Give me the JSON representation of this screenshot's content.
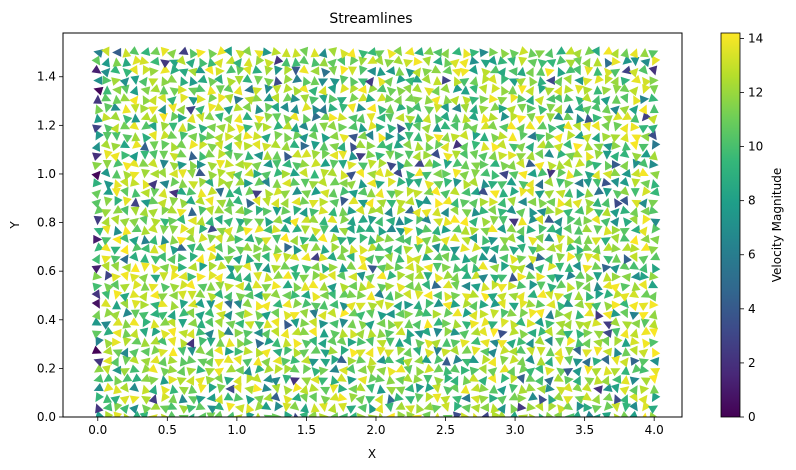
{
  "chart_data": {
    "type": "scatter",
    "subtype": "quiver (arrowhead field)",
    "title": "Streamlines",
    "xlabel": "X",
    "ylabel": "Y",
    "xlim": [
      -0.25,
      4.2
    ],
    "ylim": [
      0,
      1.58
    ],
    "xticks": [
      "0.0",
      "0.5",
      "1.0",
      "1.5",
      "2.0",
      "2.5",
      "3.0",
      "3.5",
      "4.0"
    ],
    "xtick_values": [
      0,
      0.5,
      1,
      1.5,
      2,
      2.5,
      3,
      3.5,
      4
    ],
    "yticks": [
      "0.0",
      "0.2",
      "0.4",
      "0.6",
      "0.8",
      "1.0",
      "1.2",
      "1.4"
    ],
    "ytick_values": [
      0,
      0.2,
      0.4,
      0.6,
      0.8,
      1.0,
      1.2,
      1.4
    ],
    "grid": false,
    "x_range": [
      0,
      4.0
    ],
    "y_range": [
      0,
      1.5
    ],
    "grid_nx": 60,
    "grid_ny": 40,
    "colorbar": {
      "label": "Velocity Magnitude",
      "min": 0,
      "max": 14.2,
      "ticks": [
        "0",
        "2",
        "4",
        "6",
        "8",
        "10",
        "12",
        "14"
      ],
      "tick_values": [
        0,
        2,
        4,
        6,
        8,
        10,
        12,
        14
      ],
      "colormap": "viridis",
      "colors": [
        "#440154",
        "#482878",
        "#3e4989",
        "#31688e",
        "#26828e",
        "#1f9e89",
        "#35b779",
        "#6ece58",
        "#b5de2b",
        "#fde725"
      ]
    },
    "magnitude_typical_range": [
      6,
      14.2
    ]
  }
}
